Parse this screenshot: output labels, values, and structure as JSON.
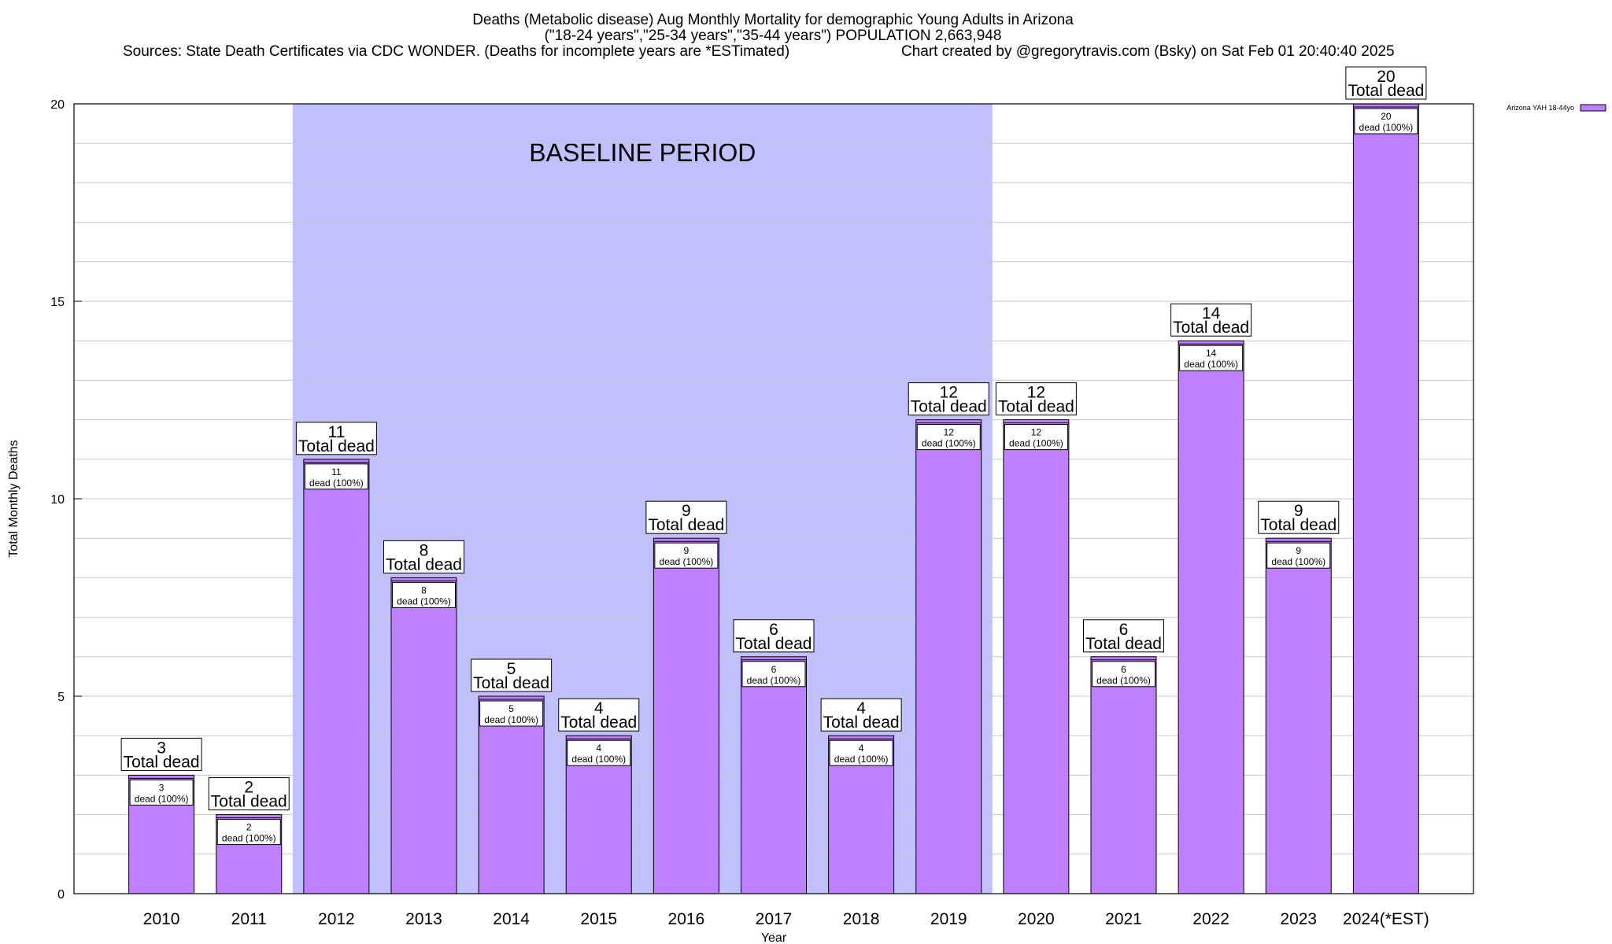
{
  "chart_data": {
    "type": "bar",
    "title_lines": [
      "Deaths (Metabolic disease) Aug Monthly Mortality for demographic Young Adults in Arizona",
      "(\"18-24 years\",\"25-34 years\",\"35-44 years\") POPULATION 2,663,948",
      "Sources: State Death Certificates via CDC WONDER. (Deaths for incomplete years are *ESTimated)",
      "Chart created by @gregorytravis.com (Bsky) on Sat Feb 01 20:40:40 2025"
    ],
    "xlabel": "Year",
    "ylabel": "Total Monthly Deaths",
    "ylim": [
      0,
      20
    ],
    "yticks": [
      0,
      5,
      10,
      15,
      20
    ],
    "grid": true,
    "legend_position": "top-right",
    "categories": [
      "2010",
      "2011",
      "2012",
      "2013",
      "2014",
      "2015",
      "2016",
      "2017",
      "2018",
      "2019",
      "2020",
      "2021",
      "2022",
      "2023",
      "2024(*EST)"
    ],
    "series": [
      {
        "name": "Arizona YAH 18-44yo",
        "color": "#bf80ff",
        "values": [
          3,
          2,
          11,
          8,
          5,
          4,
          9,
          6,
          4,
          12,
          12,
          6,
          14,
          9,
          20
        ]
      }
    ],
    "annotation_text": "Total dead",
    "inner_annotation_text": "dead (100%)",
    "baseline_period": {
      "label": "BASELINE PERIOD",
      "start": "2012",
      "end": "2019",
      "color": "#c0c0ff"
    }
  }
}
